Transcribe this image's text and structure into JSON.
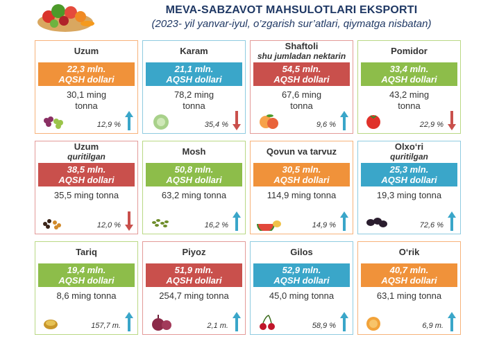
{
  "header": {
    "title": "MEVA-SABZAVOT MAHSULOTLARI EKSPORTI",
    "subtitle": "(2023- yil yanvar-iyul, o’zgarish sur’atlari, qiymatga nisbatan)"
  },
  "colors": {
    "orange": "#f0923a",
    "blue": "#3aa6c9",
    "red": "#c9504c",
    "green": "#8dbd4a",
    "up_arrow": "#3aa6c9",
    "down_arrow": "#c9504c"
  },
  "cards": [
    {
      "name": "Uzum",
      "sub": "",
      "value": "22,3 mln.",
      "unit": "AQSH dollari",
      "qty1": "30,1 ming",
      "qty2": "tonna",
      "pct": "12,9 %",
      "direction": "up",
      "color": "orange",
      "icon": "grapes-icon"
    },
    {
      "name": "Karam",
      "sub": "",
      "value": "21,1 mln.",
      "unit": "AQSH dollari",
      "qty1": "78,2 ming",
      "qty2": "tonna",
      "pct": "35,4 %",
      "direction": "down",
      "color": "blue",
      "icon": "cabbage-icon"
    },
    {
      "name": "Shaftoli",
      "sub": "shu jumladan nektarin",
      "value": "54,5 mln.",
      "unit": "AQSH dollari",
      "qty1": "67,6 ming",
      "qty2": "tonna",
      "pct": "9,6 %",
      "direction": "up",
      "color": "red",
      "icon": "peach-icon"
    },
    {
      "name": "Pomidor",
      "sub": "",
      "value": "33,4 mln.",
      "unit": "AQSH dollari",
      "qty1": "43,2 ming",
      "qty2": "tonna",
      "pct": "22,9 %",
      "direction": "down",
      "color": "green",
      "icon": "tomato-icon"
    },
    {
      "name": "Uzum",
      "sub": "quritilgan",
      "value": "38,5 mln.",
      "unit": "AQSH dollari",
      "qty1": "35,5 ming tonna",
      "qty2": "",
      "pct": "12,0 %",
      "direction": "down",
      "color": "red",
      "icon": "raisins-icon"
    },
    {
      "name": "Mosh",
      "sub": "",
      "value": "50,8 mln.",
      "unit": "AQSH dollari",
      "qty1": "63,2 ming tonna",
      "qty2": "",
      "pct": "16,2 %",
      "direction": "up",
      "color": "green",
      "icon": "mung-bean-icon"
    },
    {
      "name": "Qovun va tarvuz",
      "sub": "",
      "value": "30,5 mln.",
      "unit": "AQSH dollari",
      "qty1": "114,9 ming tonna",
      "qty2": "",
      "pct": "14,9 %",
      "direction": "up",
      "color": "orange",
      "icon": "melon-icon"
    },
    {
      "name": "Olxo‘ri",
      "sub": "quritilgan",
      "value": "25,3 mln.",
      "unit": "AQSH dollari",
      "qty1": "19,3 ming tonna",
      "qty2": "",
      "pct": "72,6 %",
      "direction": "up",
      "color": "blue",
      "icon": "prunes-icon"
    },
    {
      "name": "Tariq",
      "sub": "",
      "value": "19,4 mln.",
      "unit": "AQSH dollari",
      "qty1": "8,6 ming tonna",
      "qty2": "",
      "pct": "157,7 m.",
      "direction": "up",
      "color": "green",
      "icon": "millet-icon"
    },
    {
      "name": "Piyoz",
      "sub": "",
      "value": "51,9 mln.",
      "unit": "AQSH dollari",
      "qty1": "254,7 ming tonna",
      "qty2": "",
      "pct": "2,1 m.",
      "direction": "up",
      "color": "red",
      "icon": "onion-icon"
    },
    {
      "name": "Gilos",
      "sub": "",
      "value": "52,9 mln.",
      "unit": "AQSH dollari",
      "qty1": "45,0 ming tonna",
      "qty2": "",
      "pct": "58,9 %",
      "direction": "up",
      "color": "blue",
      "icon": "cherry-icon"
    },
    {
      "name": "O‘rik",
      "sub": "",
      "value": "40,7 mln.",
      "unit": "AQSH dollari",
      "qty1": "63,1 ming tonna",
      "qty2": "",
      "pct": "6,9 m.",
      "direction": "up",
      "color": "orange",
      "icon": "apricot-icon"
    }
  ]
}
